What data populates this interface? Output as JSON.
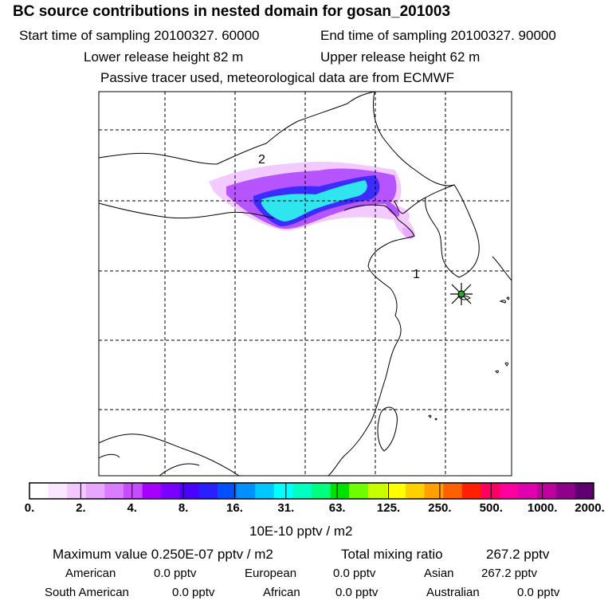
{
  "header": {
    "title": "BC  source contributions in nested domain for gosan_201003",
    "start_time": "Start time of sampling 20100327. 60000",
    "end_time": "End time of sampling 20100327. 90000",
    "lower_release": "Lower release height   82 m",
    "upper_release": "Upper release height   62 m",
    "tracer_info": "Passive tracer used, meteorological data are from ECMWF"
  },
  "map": {
    "markers": [
      "1",
      "2"
    ],
    "receptor_color": "#22aa22",
    "frame_color": "#000000",
    "grid_color": "#000000"
  },
  "colorbar": {
    "colors": [
      "#ffffff",
      "#fbe6ff",
      "#f3c8ff",
      "#e9a6ff",
      "#d97cff",
      "#c84cff",
      "#a800ff",
      "#7a00ff",
      "#4a00ff",
      "#2a20ff",
      "#0050ff",
      "#0090ff",
      "#00c8ff",
      "#00ffff",
      "#00ffc0",
      "#00ff80",
      "#00e000",
      "#70ff00",
      "#c8ff00",
      "#ffff00",
      "#ffd000",
      "#ffa000",
      "#ff6000",
      "#ff2000",
      "#ff0060",
      "#ff00a0",
      "#e000b0",
      "#c000a0",
      "#90008a",
      "#600070"
    ],
    "ticks": [
      "0.",
      "2.",
      "4.",
      "8.",
      "16.",
      "31.",
      "63.",
      "125.",
      "250.",
      "500.",
      "1000.",
      "2000."
    ],
    "unit": "10E-10 pptv / m2"
  },
  "summary": {
    "maximum": "Maximum value  0.250E-07 pptv / m2",
    "total": "Total mixing ratio",
    "total_value": "267.2 pptv",
    "american_label": "American",
    "american_value": "0.0 pptv",
    "european_label": "European",
    "european_value": "0.0 pptv",
    "asian_label": "Asian",
    "asian_value": "267.2 pptv",
    "southamerican_label": "South American",
    "southamerican_value": "0.0 pptv",
    "african_label": "African",
    "african_value": "0.0 pptv",
    "australian_label": "Australian",
    "australian_value": "0.0 pptv"
  }
}
